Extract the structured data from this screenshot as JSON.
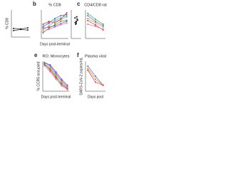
{
  "chart_data": [
    {
      "type": "line",
      "y_label": "% CD8",
      "x": [
        0,
        1,
        2
      ],
      "ylim": [
        0,
        50
      ],
      "xlim": [
        -0.3,
        2.3
      ],
      "series": [
        {
          "color": "#222222",
          "values": [
            12,
            14,
            13
          ]
        },
        {
          "color": "#222222",
          "values": [
            16,
            15,
            17
          ]
        }
      ]
    },
    {
      "type": "line",
      "panel_label": "b",
      "title": "% CD8",
      "x_label": "Days post-terminal",
      "x": [
        0,
        7,
        14,
        21,
        28
      ],
      "xlim": [
        -2,
        30
      ],
      "ylim": [
        0,
        50
      ],
      "series": [
        {
          "color": "#3b6fd4",
          "values": [
            20,
            28,
            35,
            40,
            42
          ]
        },
        {
          "color": "#f08030",
          "values": [
            15,
            22,
            30,
            33,
            38
          ]
        },
        {
          "color": "#e03030",
          "values": [
            25,
            30,
            27,
            34,
            45
          ]
        },
        {
          "color": "#30a050",
          "values": [
            10,
            18,
            24,
            30,
            32
          ]
        },
        {
          "color": "#8050c0",
          "values": [
            18,
            20,
            22,
            26,
            30
          ]
        },
        {
          "color": "#e070b0",
          "values": [
            12,
            16,
            20,
            24,
            27
          ]
        },
        {
          "color": "#40b0d0",
          "values": [
            22,
            26,
            32,
            36,
            40
          ]
        }
      ]
    },
    {
      "type": "scatter",
      "x": [
        0,
        0.2,
        -0.2,
        0.1,
        -0.1,
        0.25,
        -0.25,
        0
      ],
      "y": [
        30,
        34,
        28,
        38,
        25,
        32,
        36,
        27
      ],
      "xlim": [
        -1,
        1
      ],
      "ylim": [
        0,
        50
      ],
      "color": "#222222"
    },
    {
      "type": "line",
      "panel_label": "c",
      "title": "CD4/CD8 rat",
      "x": [
        0,
        1,
        2
      ],
      "xlim": [
        -0.3,
        2.3
      ],
      "ylim": [
        0,
        4
      ],
      "series": [
        {
          "color": "#3b6fd4",
          "values": [
            3.2,
            2.4,
            1.8
          ]
        },
        {
          "color": "#f08030",
          "values": [
            2.8,
            2.2,
            1.6
          ]
        },
        {
          "color": "#e03030",
          "values": [
            2.5,
            1.9,
            1.2
          ]
        },
        {
          "color": "#30a050",
          "values": [
            3.5,
            2.7,
            2.0
          ]
        },
        {
          "color": "#e070b0",
          "values": [
            2.0,
            1.7,
            1.3
          ]
        }
      ]
    },
    {
      "type": "line",
      "panel_label": "e",
      "title": "RO: Monocytes",
      "y_label": "% CCR5 occupied",
      "x_label": "Days post-terminal",
      "x": [
        0,
        7,
        14,
        21,
        28
      ],
      "xlim": [
        -2,
        30
      ],
      "ylim": [
        0,
        100
      ],
      "series": [
        {
          "color": "#3b6fd4",
          "values": [
            95,
            85,
            60,
            35,
            15
          ]
        },
        {
          "color": "#f08030",
          "values": [
            90,
            80,
            55,
            30,
            10
          ]
        },
        {
          "color": "#e03030",
          "values": [
            92,
            70,
            45,
            25,
            8
          ]
        },
        {
          "color": "#30a050",
          "values": [
            88,
            75,
            50,
            20,
            5
          ]
        },
        {
          "color": "#8050c0",
          "values": [
            96,
            88,
            65,
            40,
            20
          ]
        },
        {
          "color": "#e070b0",
          "values": [
            85,
            65,
            40,
            18,
            6
          ]
        }
      ]
    },
    {
      "type": "line",
      "panel_label": "f",
      "title": "Plasma viral",
      "y_label": "SARS-CoV-2 copies/mL",
      "x_label": "Days post",
      "x": [
        0,
        1,
        2
      ],
      "xlim": [
        -0.3,
        2.3
      ],
      "ylim": [
        0,
        5
      ],
      "series": [
        {
          "color": "#3b6fd4",
          "values": [
            4.2,
            2.5,
            1
          ]
        },
        {
          "color": "#f08030",
          "values": [
            3.8,
            2,
            1
          ]
        },
        {
          "color": "#e03030",
          "values": [
            3.5,
            1.5,
            1
          ]
        }
      ]
    }
  ]
}
